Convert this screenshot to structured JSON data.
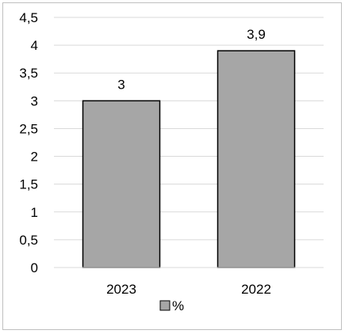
{
  "chart_data": {
    "type": "bar",
    "categories": [
      "2023",
      "2022"
    ],
    "series": [
      {
        "name": "%",
        "values": [
          3,
          3.9
        ]
      }
    ],
    "data_labels": [
      "3",
      "3,9"
    ],
    "ylim": [
      0,
      4.5
    ],
    "y_ticks": [
      0,
      0.5,
      1,
      1.5,
      2,
      2.5,
      3,
      3.5,
      4,
      4.5
    ],
    "y_tick_labels": [
      "0",
      "0,5",
      "1",
      "1,5",
      "2",
      "2,5",
      "3",
      "3,5",
      "4",
      "4,5"
    ],
    "grid": true,
    "legend_position": "bottom",
    "bar_color": "#a6a6a6",
    "bar_edge_color": "#000000",
    "grid_color": "#d9d9d9"
  }
}
